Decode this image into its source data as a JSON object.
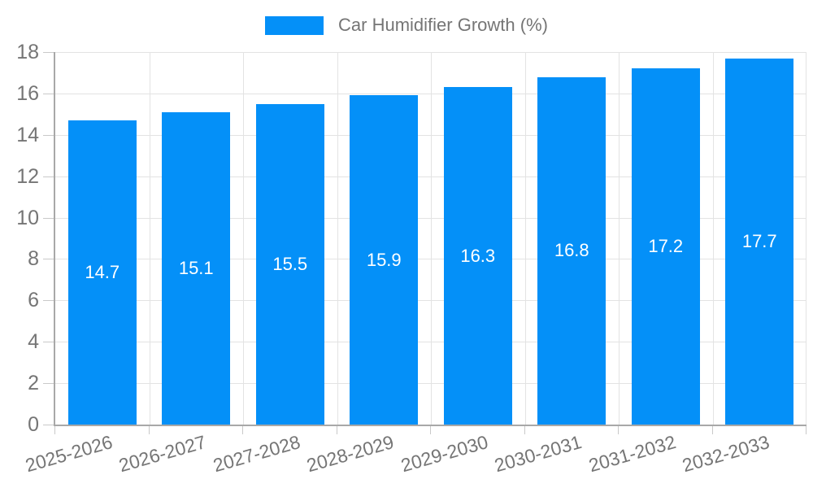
{
  "chart_data": {
    "type": "bar",
    "title": "Car Humidifier Growth (%)",
    "legend": [
      "Car Humidifier Growth (%)"
    ],
    "legend_position": "top",
    "categories": [
      "2025-2026",
      "2026-2027",
      "2027-2028",
      "2028-2029",
      "2029-2030",
      "2030-2031",
      "2031-2032",
      "2032-2033"
    ],
    "values": [
      14.7,
      15.1,
      15.5,
      15.9,
      16.3,
      16.8,
      17.2,
      17.7
    ],
    "value_labels": [
      "14.7",
      "15.1",
      "15.5",
      "15.9",
      "16.3",
      "16.8",
      "17.2",
      "17.7"
    ],
    "xlabel": "",
    "ylabel": "",
    "ylim": [
      0,
      18
    ],
    "ytick_step": 2,
    "yticks": [
      0,
      2,
      4,
      6,
      8,
      10,
      12,
      14,
      16,
      18
    ],
    "grid": "on",
    "colors": {
      "bar": "#0490F8",
      "grid": "#E3E3E3",
      "axis_line": "#A8A8A8",
      "tick": "#C9C9C9",
      "axis_text": "#757575",
      "value_text": "#FFFFFF",
      "background": "#FFFFFF"
    }
  }
}
